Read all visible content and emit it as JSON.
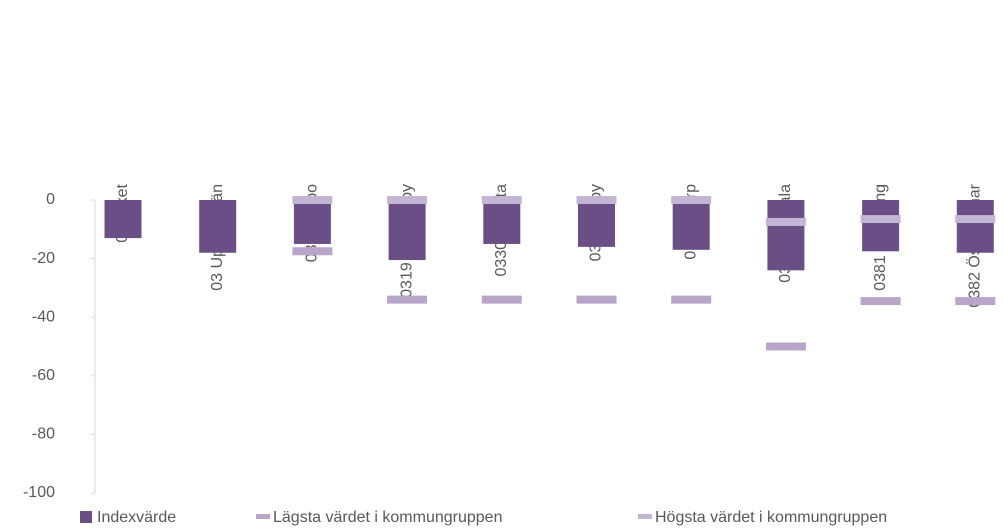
{
  "chart_data": {
    "type": "bar",
    "categories": [
      "00 Riket",
      "03 Uppsala län",
      "0305 Håbo",
      "0319 Älvkarleby",
      "0330 Knivsta",
      "0331 Heby",
      "0360 Tierp",
      "0380 Uppsala",
      "0381 Enköping",
      "0382 Östhammar"
    ],
    "series": [
      {
        "name": "Indexvärde",
        "color": "#6a4f86",
        "values": [
          -13,
          -18,
          -15,
          -20.5,
          -15,
          -16,
          -17,
          -24,
          -17.5,
          -18
        ]
      },
      {
        "name": "Lägsta värdet i kommungruppen",
        "color": "#b7a6ca",
        "values": [
          null,
          null,
          -17.5,
          -34,
          -34,
          -34,
          -34,
          -50,
          -34.5,
          -34.5
        ]
      },
      {
        "name": "Högsta värdet i kommungruppen",
        "color": "#c3b5d4",
        "values": [
          null,
          null,
          0,
          0,
          0,
          0,
          0,
          -7.5,
          -6.5,
          -6.5
        ]
      }
    ],
    "ylim": [
      -100,
      0
    ],
    "yticks": [
      0,
      -20,
      -40,
      -60,
      -80,
      -100
    ]
  }
}
